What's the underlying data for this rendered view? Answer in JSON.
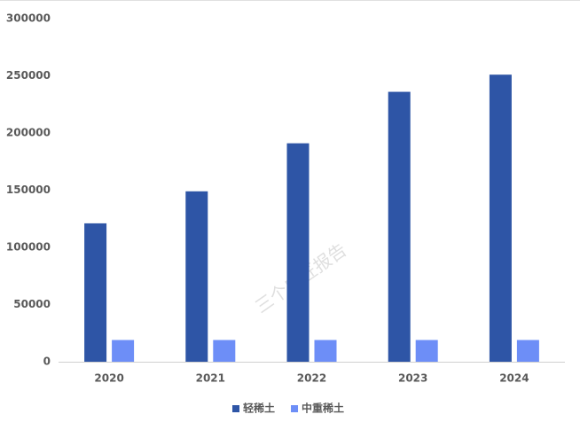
{
  "chart_data": {
    "type": "bar",
    "categories": [
      "2020",
      "2021",
      "2022",
      "2023",
      "2024"
    ],
    "series": [
      {
        "name": "轻稀土",
        "color": "#2e55a6",
        "values": [
          121000,
          149000,
          191000,
          236000,
          251000
        ]
      },
      {
        "name": "中重稀土",
        "color": "#6d8ef7",
        "values": [
          19000,
          19000,
          19000,
          19000,
          19000
        ]
      }
    ],
    "ylim": [
      0,
      300000
    ],
    "yticks": [
      0,
      50000,
      100000,
      150000,
      200000,
      250000,
      300000
    ],
    "grid": false,
    "legend": "bottom",
    "watermark": "三个皮匠报告"
  }
}
